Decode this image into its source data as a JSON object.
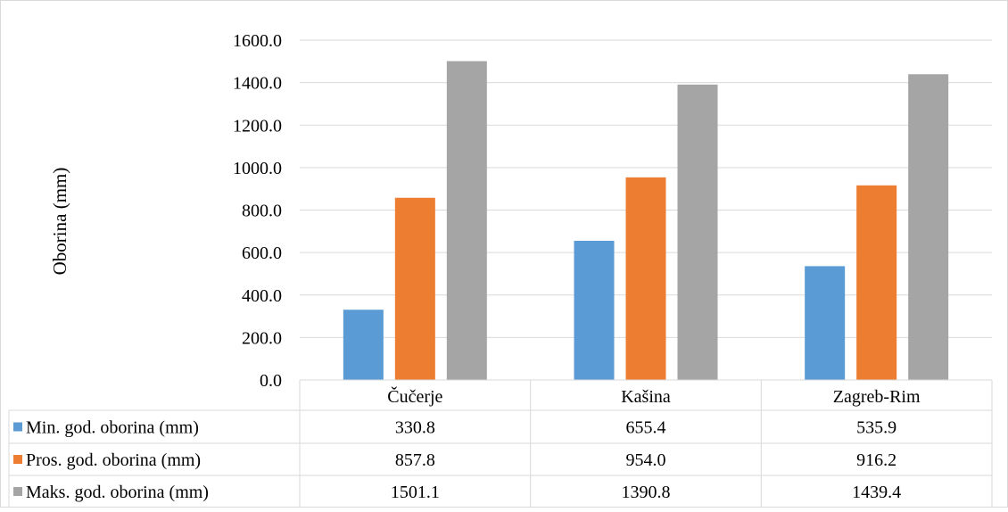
{
  "chart_data": {
    "type": "bar",
    "title": "",
    "xlabel": "",
    "ylabel": "Oborina (mm)",
    "ylim": [
      0,
      1600
    ],
    "y_tick_step": 200,
    "y_tick_format_decimals": 1,
    "grid": true,
    "legend": "data-table-left",
    "categories": [
      "Čučerje",
      "Kašina",
      "Zagreb-Rim"
    ],
    "series": [
      {
        "name": "Min. god. oborina (mm)",
        "color": "#5b9bd5",
        "values": [
          330.8,
          655.4,
          535.9
        ],
        "display_values": [
          "330.8",
          "655.4",
          "535.9"
        ]
      },
      {
        "name": "Pros. god. oborina (mm)",
        "color": "#ed7d31",
        "values": [
          857.8,
          954.0,
          916.2
        ],
        "display_values": [
          "857.8",
          "954.0",
          "916.2"
        ]
      },
      {
        "name": "Maks. god. oborina (mm)",
        "color": "#a5a5a5",
        "values": [
          1501.1,
          1390.8,
          1439.4
        ],
        "display_values": [
          "1501.1",
          "1390.8",
          "1439.4"
        ]
      }
    ]
  }
}
